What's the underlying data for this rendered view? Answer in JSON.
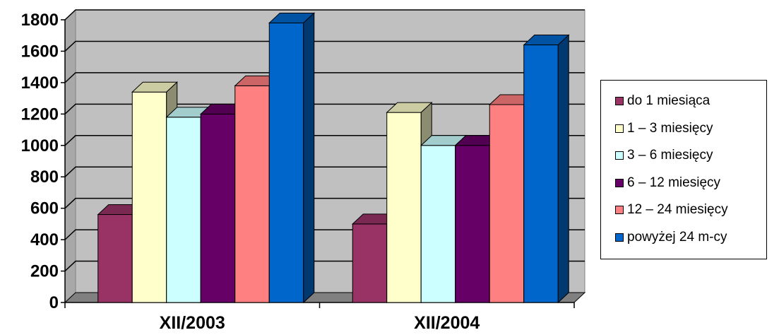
{
  "chart_data": {
    "type": "bar",
    "categories": [
      "XII/2003",
      "XII/2004"
    ],
    "series": [
      {
        "name": "do 1 miesiąca",
        "color": "#993366",
        "values": [
          560,
          500
        ]
      },
      {
        "name": "1 – 3 miesięcy",
        "color": "#FFFFCC",
        "values": [
          1340,
          1210
        ]
      },
      {
        "name": "3 – 6 miesięcy",
        "color": "#CCFFFF",
        "values": [
          1180,
          1000
        ]
      },
      {
        "name": "6 – 12 miesięcy",
        "color": "#660066",
        "values": [
          1200,
          1000
        ]
      },
      {
        "name": "12 – 24 miesięcy",
        "color": "#FF8080",
        "values": [
          1380,
          1260
        ]
      },
      {
        "name": "powyżej 24 m-cy",
        "color": "#0066CC",
        "values": [
          1780,
          1640
        ]
      }
    ],
    "ylim": [
      0,
      1800
    ],
    "yticks": [
      "0",
      "200",
      "400",
      "600",
      "800",
      "1000",
      "1200",
      "1400",
      "1600",
      "1800"
    ],
    "grid": true,
    "legend_position": "right",
    "style": "3d-clustered-column",
    "wall_color": "#C0C0C0"
  }
}
